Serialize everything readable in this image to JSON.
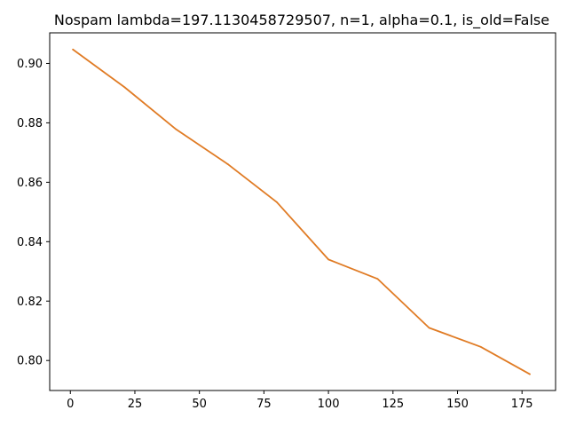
{
  "chart_data": {
    "type": "line",
    "title": "Nospam lambda=197.1130458729507, n=1, alpha=0.1, is_old=False",
    "xlabel": "",
    "ylabel": "",
    "xlim": [
      -8.0,
      188.0
    ],
    "ylim": [
      0.7899,
      0.9103
    ],
    "x_ticks": [
      0,
      25,
      50,
      75,
      100,
      125,
      150,
      175
    ],
    "x_tick_labels": [
      "0",
      "25",
      "50",
      "75",
      "100",
      "125",
      "150",
      "175"
    ],
    "y_ticks": [
      0.8,
      0.82,
      0.84,
      0.86,
      0.88,
      0.9
    ],
    "y_tick_labels": [
      "0.80",
      "0.82",
      "0.84",
      "0.86",
      "0.88",
      "0.90"
    ],
    "grid": false,
    "legend": "none",
    "series": [
      {
        "color": "#e07b24",
        "x": [
          1,
          21,
          41,
          61,
          80,
          100,
          119,
          139,
          159,
          178
        ],
        "y": [
          0.9047,
          0.892,
          0.8778,
          0.8661,
          0.8533,
          0.834,
          0.8275,
          0.811,
          0.8046,
          0.7954
        ]
      }
    ]
  }
}
